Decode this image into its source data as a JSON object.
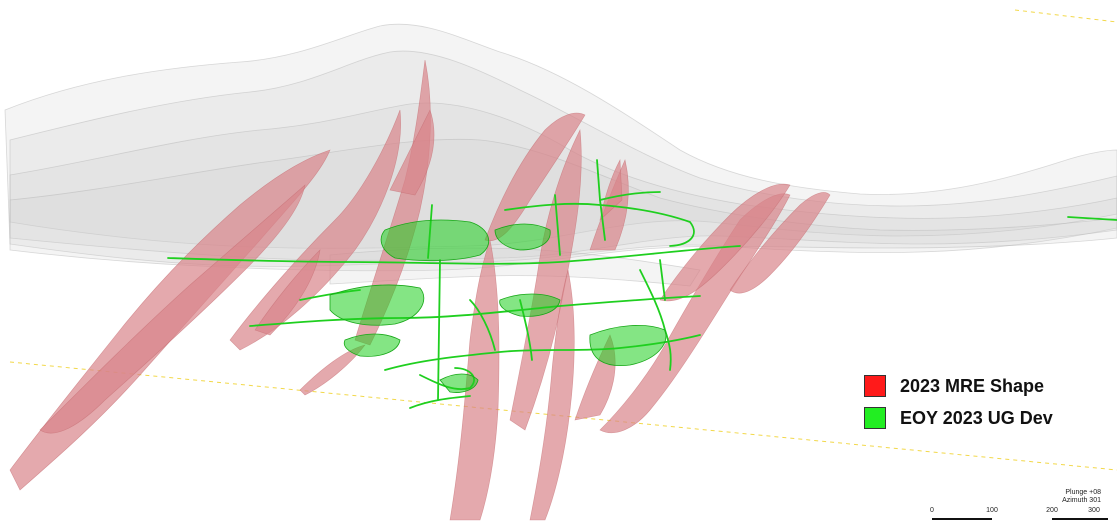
{
  "legend": {
    "items": [
      {
        "label": "2023 MRE Shape",
        "color": "#ff1a1a"
      },
      {
        "label": "EOY 2023 UG Dev",
        "color": "#22ee22"
      }
    ]
  },
  "view": {
    "plunge": "Plunge +08",
    "azimuth": "Azimuth 301"
  },
  "scale": {
    "ticks": [
      "0",
      "100",
      "200",
      "300"
    ]
  },
  "colors": {
    "mre_fill": "#d9848a",
    "dev_line": "#1fcf1f",
    "topo": "#bfbfbf",
    "grid_dash": "#f2d84a"
  }
}
